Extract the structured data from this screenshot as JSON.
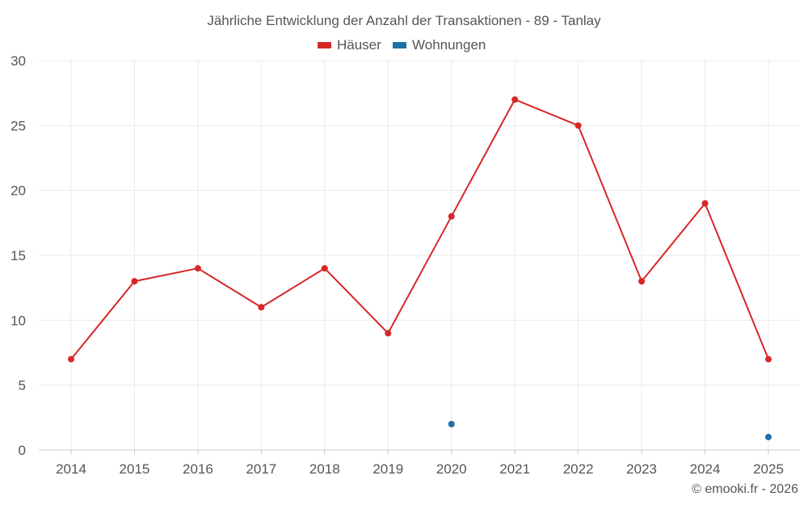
{
  "chart_data": {
    "type": "line",
    "title": "Jährliche Entwicklung der Anzahl der Transaktionen - 89 - Tanlay",
    "xlabel": "",
    "ylabel": "",
    "categories": [
      "2014",
      "2015",
      "2016",
      "2017",
      "2018",
      "2019",
      "2020",
      "2021",
      "2022",
      "2023",
      "2024",
      "2025"
    ],
    "ylim": [
      0,
      30
    ],
    "yticks": [
      "0",
      "5",
      "10",
      "15",
      "20",
      "25",
      "30"
    ],
    "grid": true,
    "legend_position": "top-center",
    "series": [
      {
        "name": "Häuser",
        "color": "#d62728",
        "values": [
          7,
          13,
          14,
          11,
          14,
          9,
          18,
          27,
          25,
          13,
          19,
          7
        ]
      },
      {
        "name": "Wohnungen",
        "color": "#1f6fa8",
        "values": [
          null,
          null,
          null,
          null,
          null,
          null,
          2,
          null,
          null,
          null,
          null,
          1
        ]
      }
    ]
  },
  "credit": "© emooki.fr - 2026"
}
